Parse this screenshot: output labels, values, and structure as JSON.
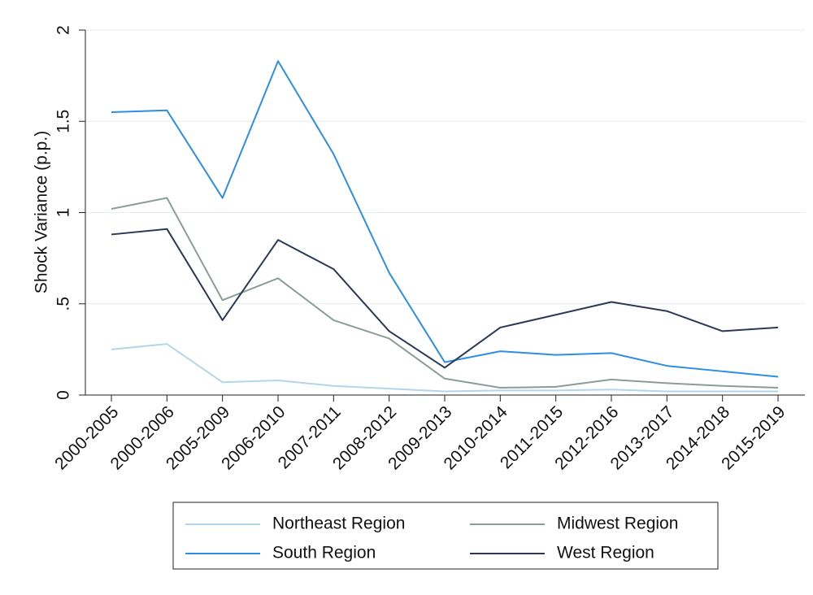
{
  "chart_data": {
    "type": "line",
    "y_label": "Shock Variance (p.p.)",
    "categories": [
      "2000-2005",
      "2000-2006",
      "2005-2009",
      "2006-2010",
      "2007-2011",
      "2008-2012",
      "2009-2013",
      "2010-2014",
      "2011-2015",
      "2012-2016",
      "2013-2017",
      "2014-2018",
      "2015-2019"
    ],
    "series": [
      {
        "name": "Northeast Region",
        "color": "#b3d5ea",
        "values": [
          0.25,
          0.28,
          0.07,
          0.08,
          0.05,
          0.035,
          0.02,
          0.025,
          0.025,
          0.03,
          0.02,
          0.02,
          0.02
        ]
      },
      {
        "name": "Midwest Region",
        "color": "#8a9e96",
        "values": [
          1.02,
          1.08,
          0.52,
          0.64,
          0.41,
          0.31,
          0.09,
          0.04,
          0.045,
          0.085,
          0.065,
          0.05,
          0.04
        ]
      },
      {
        "name": "South Region",
        "color": "#2e8ee6",
        "values": [
          1.55,
          1.56,
          1.08,
          1.83,
          1.32,
          0.67,
          0.18,
          0.24,
          0.22,
          0.23,
          0.16,
          0.13,
          0.1
        ]
      },
      {
        "name": "West Region",
        "color": "#2b3856",
        "values": [
          0.88,
          0.91,
          0.41,
          0.85,
          0.69,
          0.35,
          0.15,
          0.37,
          0.44,
          0.51,
          0.46,
          0.35,
          0.37
        ]
      }
    ],
    "ylim": [
      0,
      2
    ],
    "yticks": [
      0,
      {
        "value": 0.5,
        "label": ".5"
      },
      1,
      1.5,
      2
    ],
    "grid": true,
    "legend_position": "bottom"
  }
}
